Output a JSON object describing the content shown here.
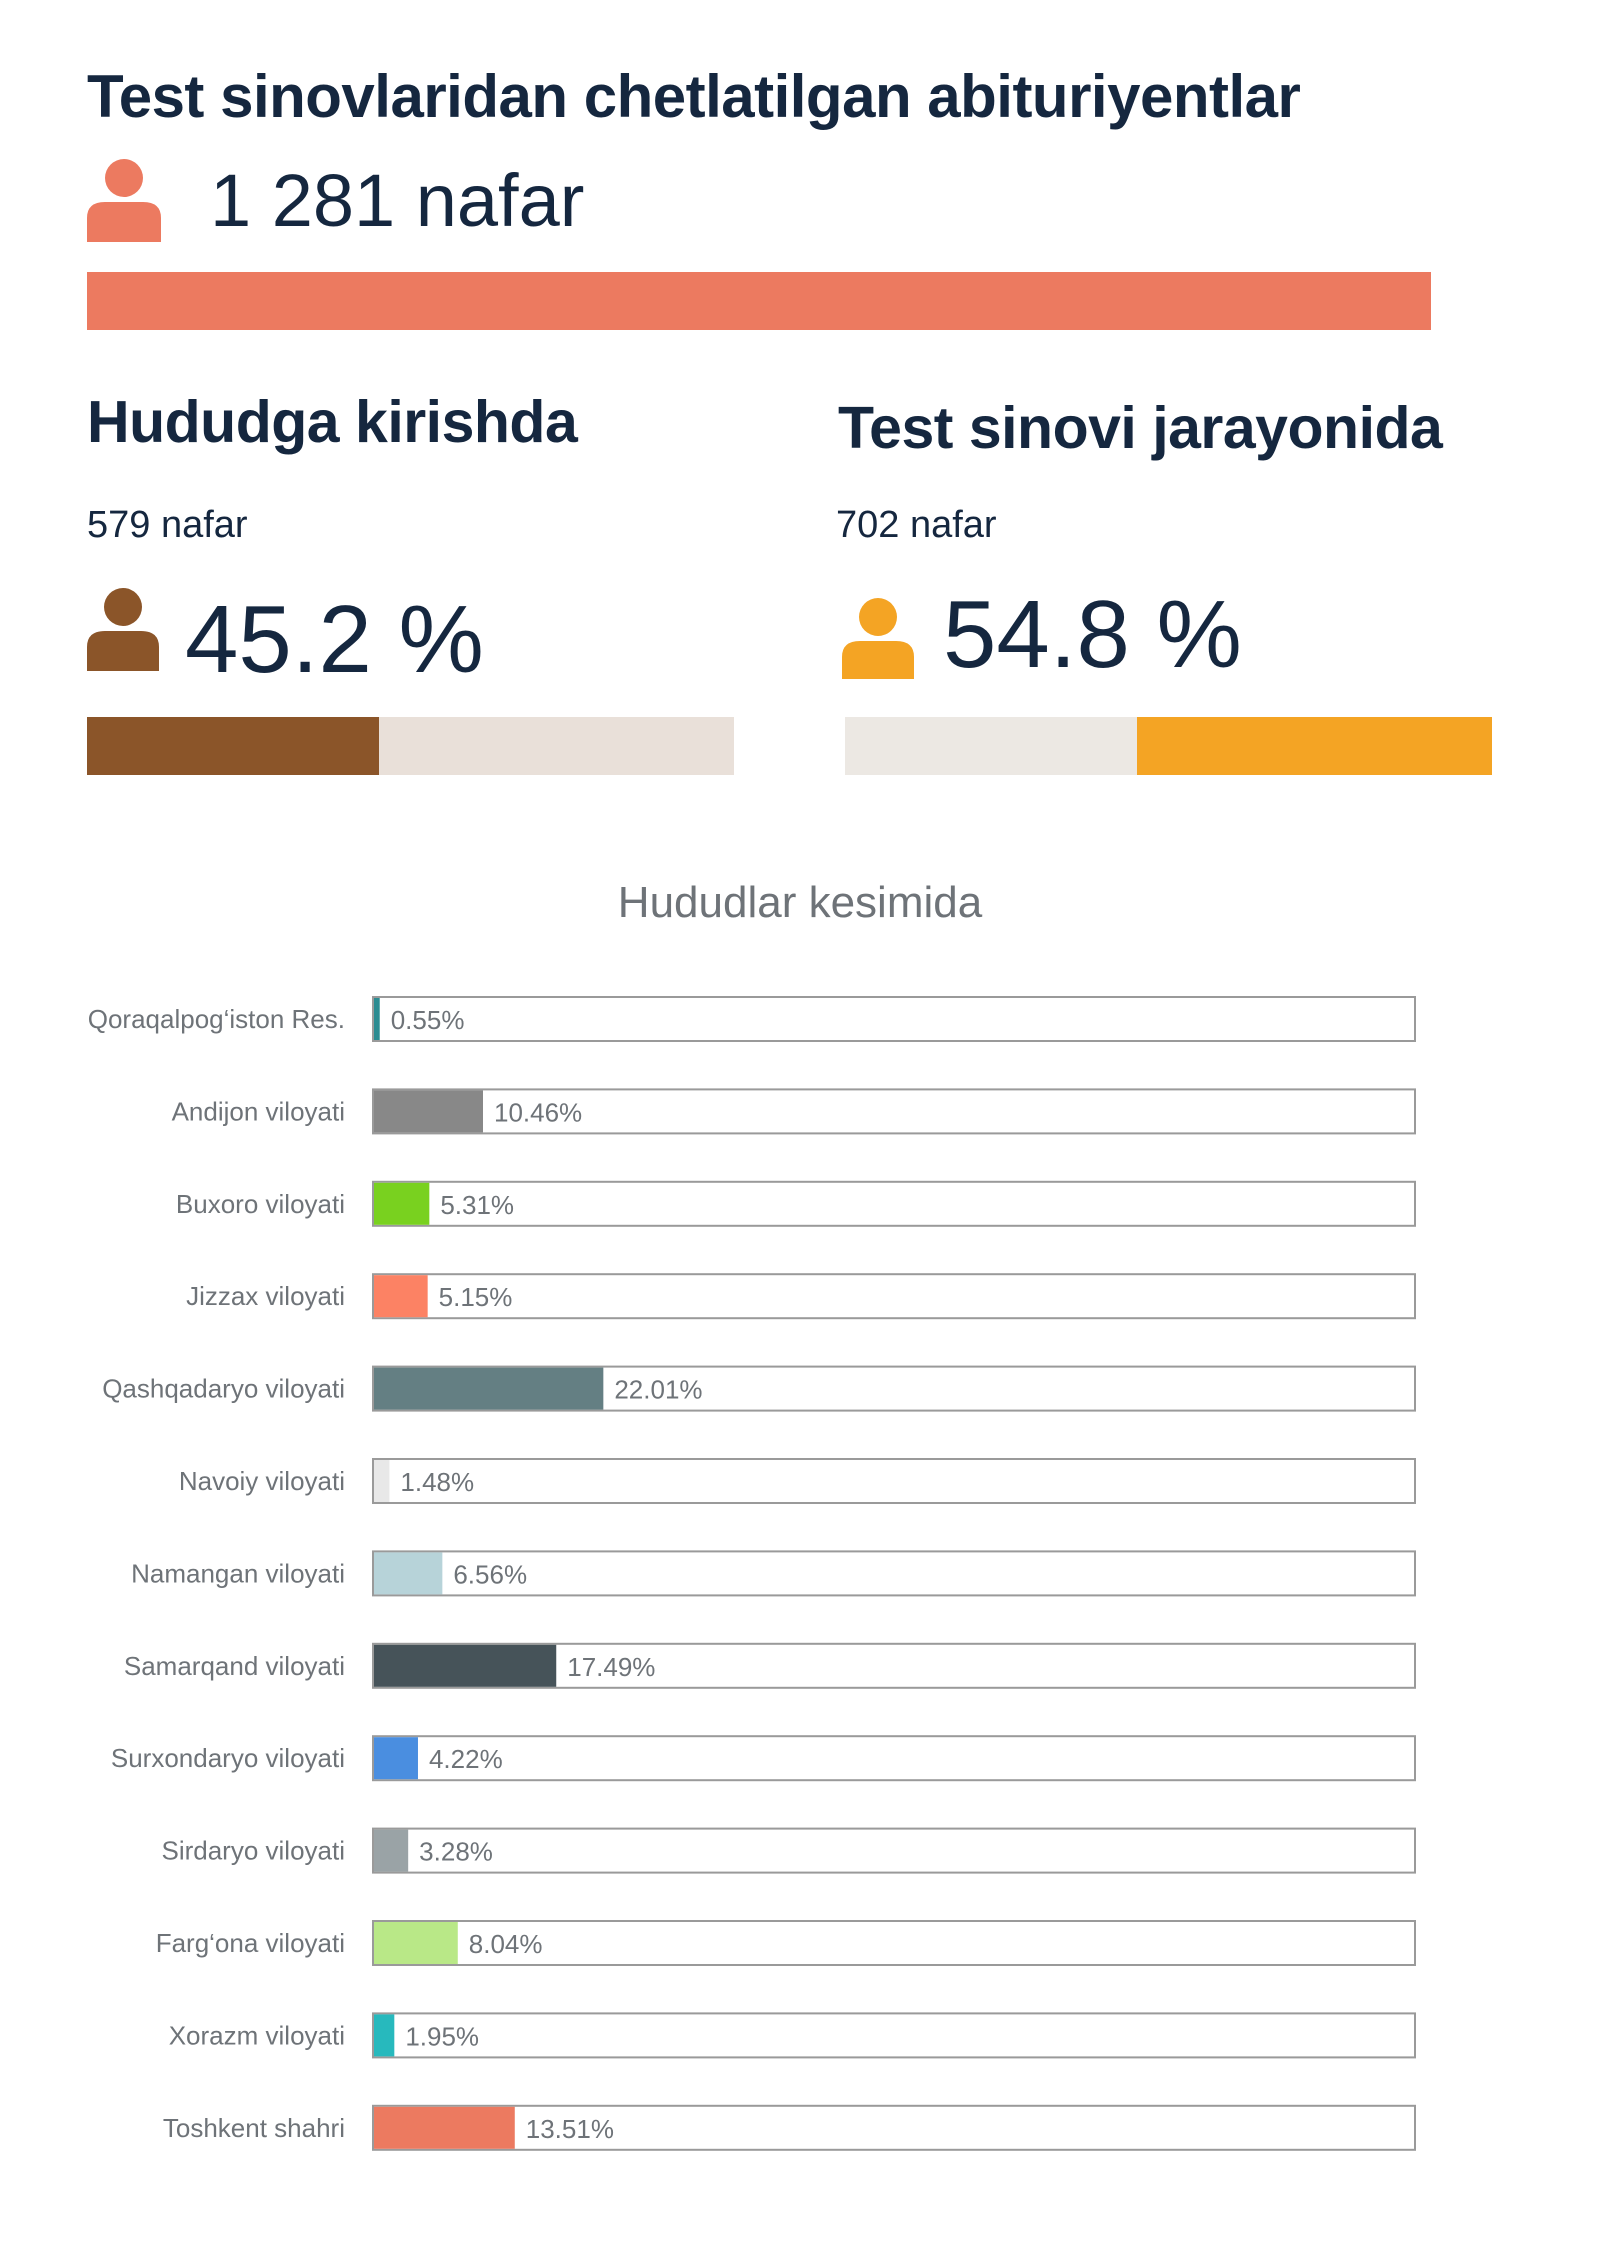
{
  "header": {
    "title": "Test sinovlaridan chetlatilgan abituriyentlar",
    "total_count": "1 281 nafar",
    "icon": "person-icon",
    "color": "#ec7a60"
  },
  "sections": [
    {
      "title": "Hududga kirishda",
      "count": "579 nafar",
      "percent_label": "45.2 %",
      "percent": 45.2,
      "icon": "person-icon",
      "color": "#8b5529",
      "rest_color": "#e9e0d9"
    },
    {
      "title": "Test sinovi jarayonida",
      "count": "702 nafar",
      "percent_label": "54.8 %",
      "percent": 54.8,
      "icon": "person-icon",
      "color": "#f4a424",
      "rest_color": "#ece8e3"
    }
  ],
  "chart_data": {
    "type": "bar",
    "orientation": "horizontal",
    "title": "Hududlar kesimida",
    "xlim": [
      0,
      100
    ],
    "grid": false,
    "categories": [
      "Qoraqalpog‘iston Res.",
      "Andijon viloyati",
      "Buxoro viloyati",
      "Jizzax viloyati",
      "Qashqadaryo viloyati",
      "Navoiy viloyati",
      "Namangan viloyati",
      "Samarqand viloyati",
      "Surxondaryo viloyati",
      "Sirdaryo viloyati",
      "Farg‘ona viloyati",
      "Xorazm viloyati",
      "Toshkent shahri"
    ],
    "values": [
      0.55,
      10.46,
      5.31,
      5.15,
      22.01,
      1.48,
      6.56,
      17.49,
      4.22,
      3.28,
      8.04,
      1.95,
      13.51
    ],
    "value_labels": [
      "0.55%",
      "10.46%",
      "5.31%",
      "5.15%",
      "22.01%",
      "1.48%",
      "6.56%",
      "17.49%",
      "4.22%",
      "3.28%",
      "8.04%",
      "1.95%",
      "13.51%"
    ],
    "colors": [
      "#2b8c92",
      "#888888",
      "#79d11f",
      "#fc8264",
      "#647f83",
      "#e8e8e8",
      "#b7d3d9",
      "#465359",
      "#4a8ee0",
      "#9aa3a6",
      "#b9e887",
      "#27b9bd",
      "#ec7a60"
    ]
  }
}
